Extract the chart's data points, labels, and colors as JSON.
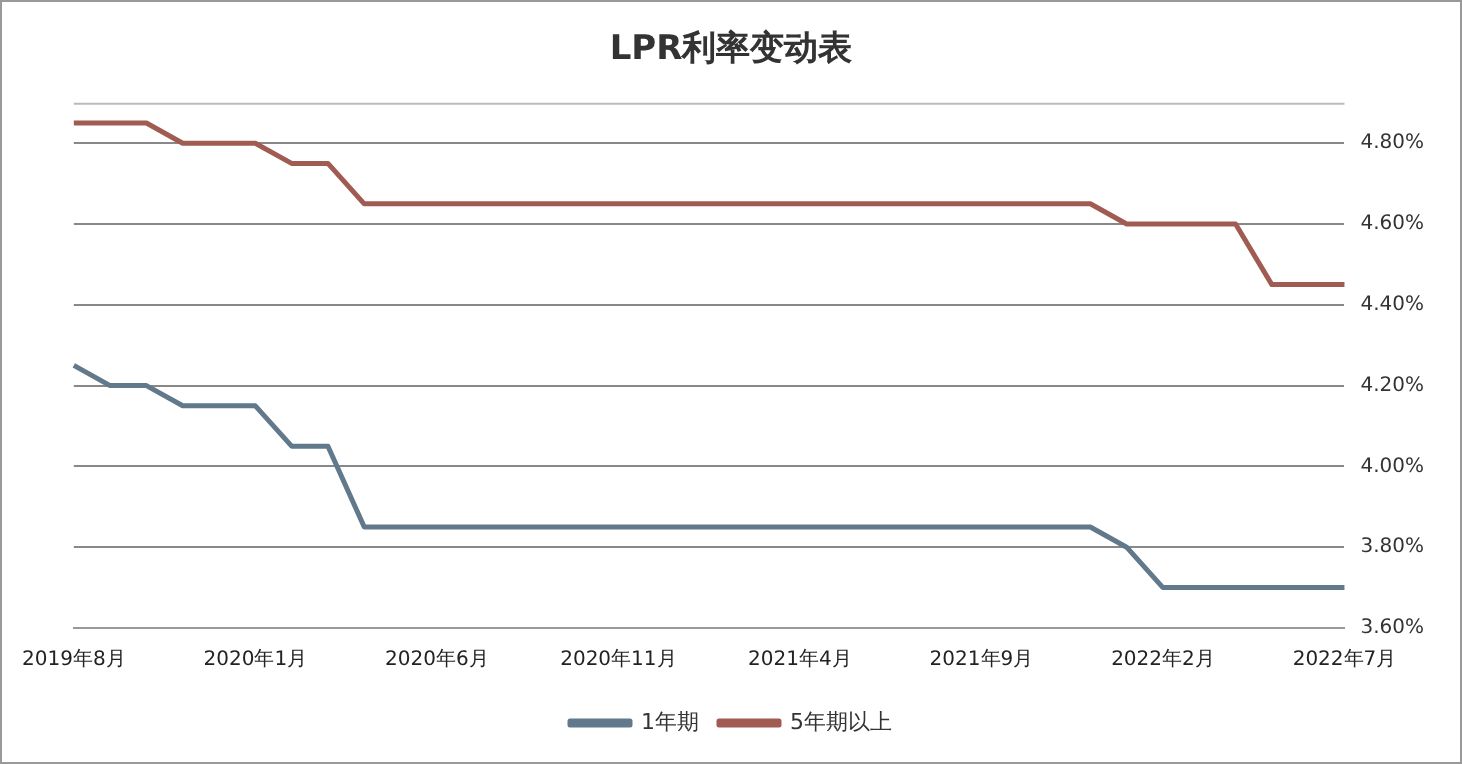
{
  "chart_data": {
    "type": "line",
    "title": "LPR利率变动表",
    "categories": [
      "2019年8月",
      null,
      null,
      null,
      null,
      "2020年1月",
      null,
      null,
      null,
      null,
      "2020年6月",
      null,
      null,
      null,
      null,
      "2020年11月",
      null,
      null,
      null,
      null,
      "2021年4月",
      null,
      null,
      null,
      null,
      "2021年9月",
      null,
      null,
      null,
      null,
      "2022年2月",
      null,
      null,
      null,
      null,
      "2022年7月"
    ],
    "series": [
      {
        "name": "1年期",
        "color": "#62798b",
        "values": [
          4.25,
          4.2,
          4.2,
          4.15,
          4.15,
          4.15,
          4.05,
          4.05,
          3.85,
          3.85,
          3.85,
          3.85,
          3.85,
          3.85,
          3.85,
          3.85,
          3.85,
          3.85,
          3.85,
          3.85,
          3.85,
          3.85,
          3.85,
          3.85,
          3.85,
          3.85,
          3.85,
          3.85,
          3.85,
          3.8,
          3.7,
          3.7,
          3.7,
          3.7,
          3.7,
          3.7
        ]
      },
      {
        "name": "5年期以上",
        "color": "#a05b52",
        "values": [
          4.85,
          4.85,
          4.85,
          4.8,
          4.8,
          4.8,
          4.75,
          4.75,
          4.65,
          4.65,
          4.65,
          4.65,
          4.65,
          4.65,
          4.65,
          4.65,
          4.65,
          4.65,
          4.65,
          4.65,
          4.65,
          4.65,
          4.65,
          4.65,
          4.65,
          4.65,
          4.65,
          4.65,
          4.65,
          4.6,
          4.6,
          4.6,
          4.6,
          4.45,
          4.45,
          4.45
        ]
      }
    ],
    "ylim": [
      3.6,
      4.9
    ],
    "yticks": [
      {
        "value": 3.6,
        "label": "3.60%"
      },
      {
        "value": 3.8,
        "label": "3.80%"
      },
      {
        "value": 4.0,
        "label": "4.00%"
      },
      {
        "value": 4.2,
        "label": "4.20%"
      },
      {
        "value": 4.4,
        "label": "4.40%"
      },
      {
        "value": 4.6,
        "label": "4.60%"
      },
      {
        "value": 4.8,
        "label": "4.80%"
      }
    ],
    "grid": "y",
    "legend": "bottom",
    "marker": "none",
    "line_style": "solid"
  }
}
